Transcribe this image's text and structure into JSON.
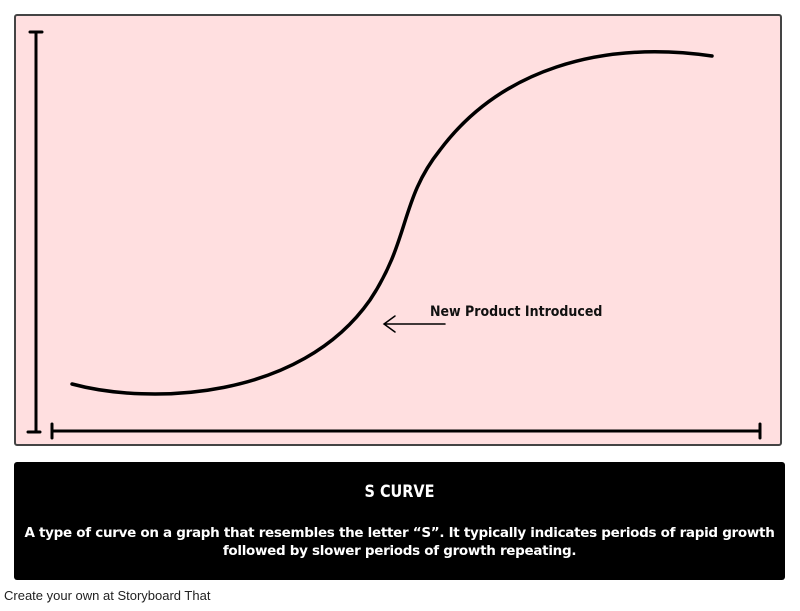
{
  "panel": {
    "annotation": "New Product Introduced"
  },
  "caption": {
    "title": "S CURVE",
    "text": "A type of curve on a graph that resembles the letter “S”. It typically indicates periods of rapid growth followed by slower periods of growth repeating."
  },
  "footer": {
    "text": "Create your own at Storyboard That"
  }
}
